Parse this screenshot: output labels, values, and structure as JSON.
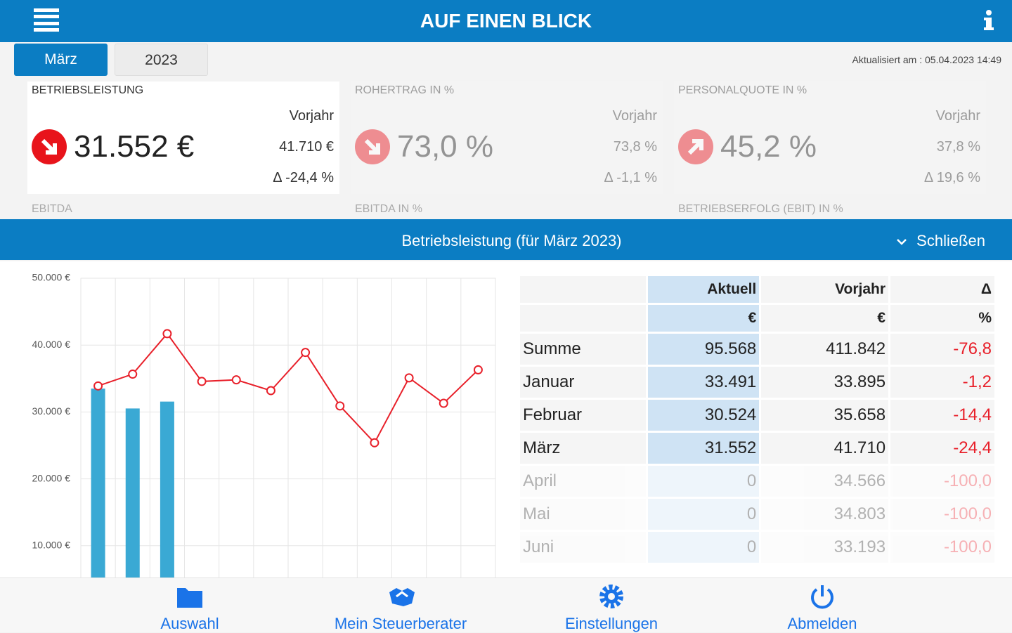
{
  "header": {
    "title": "AUF EINEN BLICK"
  },
  "tabs": [
    "März",
    "2023"
  ],
  "updated": "Aktualisiert am : 05.04.2023 14:49",
  "kpis": [
    {
      "title": "BETRIEBSLEISTUNG",
      "value": "31.552 €",
      "prev_label": "Vorjahr",
      "prev_value": "41.710 €",
      "delta": "Δ -24,4 %",
      "trend": "down",
      "active": true
    },
    {
      "title": "ROHERTRAG IN %",
      "value": "73,0 %",
      "prev_label": "Vorjahr",
      "prev_value": "73,8 %",
      "delta": "Δ -1,1 %",
      "trend": "down",
      "active": false
    },
    {
      "title": "PERSONALQUOTE IN %",
      "value": "45,2 %",
      "prev_label": "Vorjahr",
      "prev_value": "37,8 %",
      "delta": "Δ 19,6 %",
      "trend": "up",
      "active": false
    }
  ],
  "next_kpis": [
    "EBITDA",
    "EBITDA IN %",
    "BETRIEBSERFOLG (EBIT) IN %"
  ],
  "panel": {
    "title": "Betriebsleistung (für März 2023)",
    "close": "Schließen"
  },
  "chart_data": {
    "type": "bar",
    "categories": [
      null,
      null,
      null,
      null,
      null,
      null,
      null,
      null,
      null,
      null,
      null,
      null
    ],
    "series": [
      {
        "type": "bar",
        "color": "#3aa9d4",
        "values": [
          33491,
          30524,
          31552,
          0,
          0,
          0,
          null,
          null,
          null,
          null,
          null,
          null
        ]
      },
      {
        "type": "line",
        "color": "#e8202a",
        "values": [
          33895,
          35658,
          41710,
          34566,
          34803,
          33193,
          38900,
          30900,
          25400,
          35100,
          31300,
          36300
        ]
      }
    ],
    "ylim": [
      0,
      50000
    ],
    "yticks": [
      {
        "value": 10000,
        "label": "10.000 €"
      },
      {
        "value": 20000,
        "label": "20.000 €"
      },
      {
        "value": 30000,
        "label": "30.000 €"
      },
      {
        "value": 40000,
        "label": "40.000 €"
      },
      {
        "value": 50000,
        "label": "50.000 €"
      }
    ],
    "grid": true
  },
  "table": {
    "columns": [
      {
        "label": "Aktuell",
        "unit": "€"
      },
      {
        "label": "Vorjahr",
        "unit": "€"
      },
      {
        "label": "Δ",
        "unit": "%"
      }
    ],
    "rows": [
      {
        "label": "Summe",
        "values": [
          "95.568",
          "411.842",
          "-76,8"
        ]
      },
      {
        "label": "Januar",
        "values": [
          "33.491",
          "33.895",
          "-1,2"
        ]
      },
      {
        "label": "Februar",
        "values": [
          "30.524",
          "35.658",
          "-14,4"
        ]
      },
      {
        "label": "März",
        "values": [
          "31.552",
          "41.710",
          "-24,4"
        ]
      },
      {
        "label": "April",
        "values": [
          "0",
          "34.566",
          "-100,0"
        ]
      },
      {
        "label": "Mai",
        "values": [
          "0",
          "34.803",
          "-100,0"
        ]
      },
      {
        "label": "Juni",
        "values": [
          "0",
          "33.193",
          "-100,0"
        ]
      }
    ]
  },
  "nav": [
    "Auswahl",
    "Mein Steuerberater",
    "Einstellungen",
    "Abmelden"
  ]
}
